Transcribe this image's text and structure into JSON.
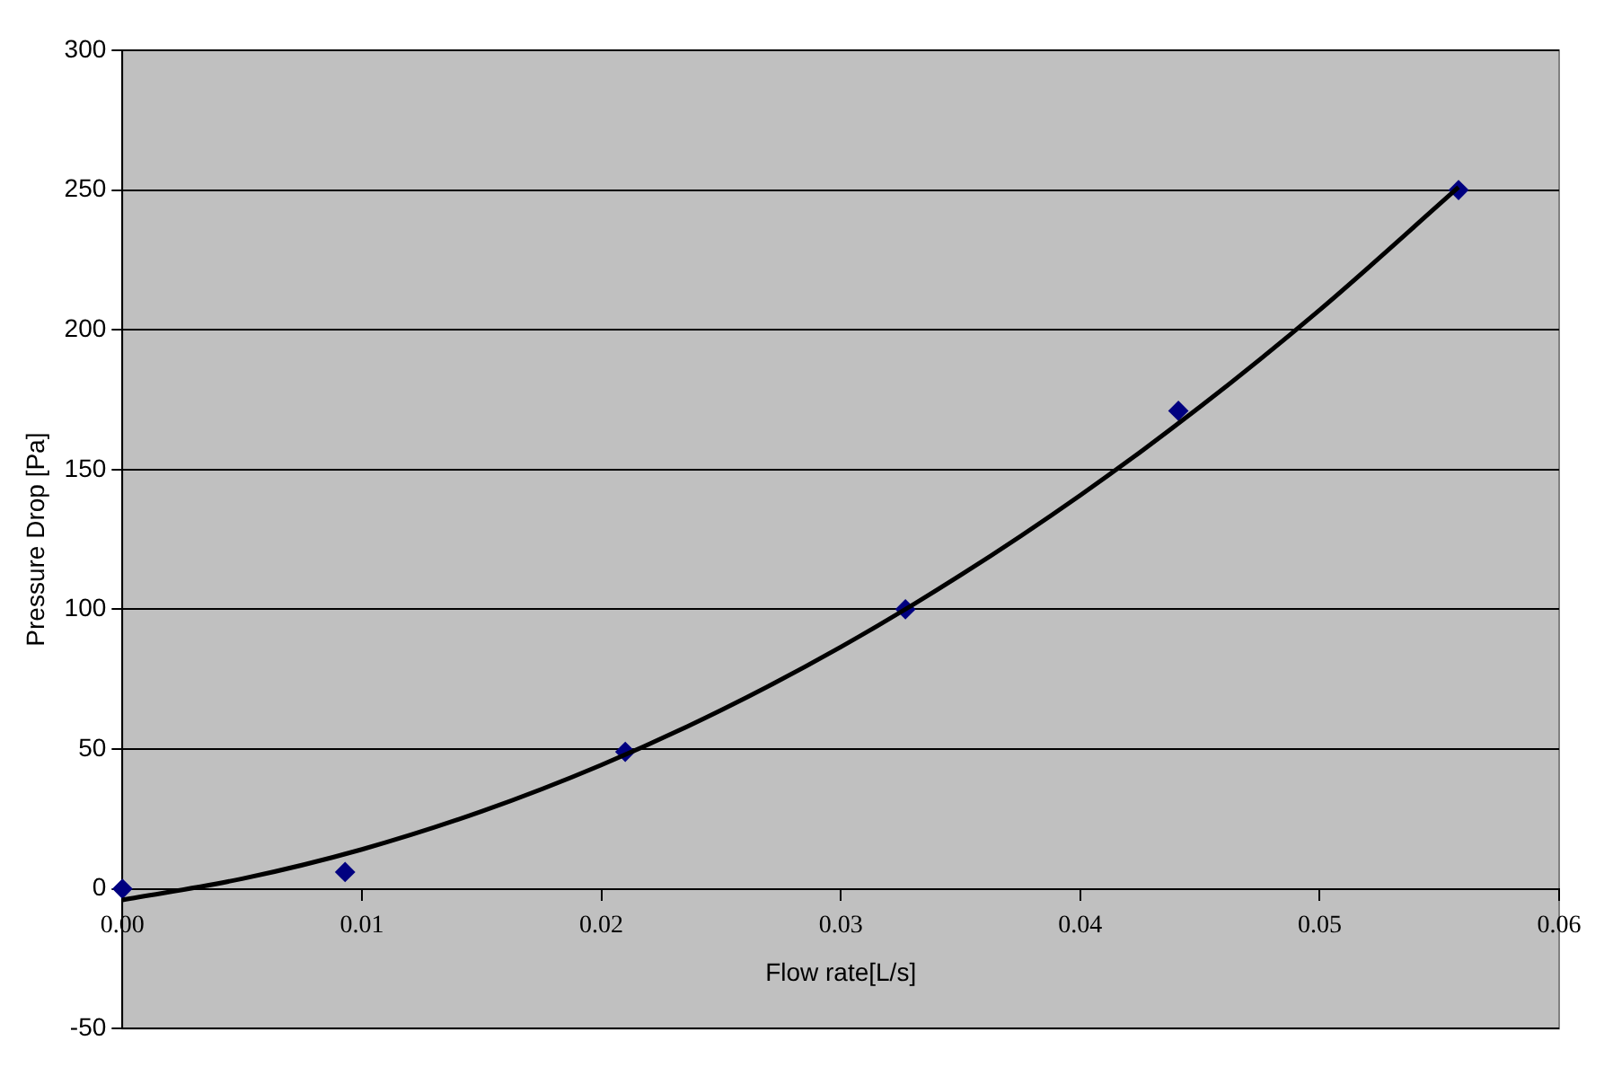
{
  "chart_data": {
    "type": "scatter",
    "xlabel": "Flow rate[L/s]",
    "ylabel": "Pressure Drop [Pa]",
    "xlim": [
      0,
      0.06
    ],
    "xticks": [
      {
        "value": 0,
        "label": "0.00"
      },
      {
        "value": 0.01,
        "label": "0.01"
      },
      {
        "value": 0.02,
        "label": "0.02"
      },
      {
        "value": 0.03,
        "label": "0.03"
      },
      {
        "value": 0.04,
        "label": "0.04"
      },
      {
        "value": 0.05,
        "label": "0.05"
      },
      {
        "value": 0.06,
        "label": "0.06"
      }
    ],
    "ylim": [
      -50,
      300
    ],
    "yticks": [
      -50,
      0,
      50,
      100,
      150,
      200,
      250,
      300
    ],
    "grid": "y",
    "legend": false,
    "series": [
      {
        "type": "scatter",
        "color": "#000080",
        "marker": "diamond",
        "x": [
          0,
          0.0093,
          0.021,
          0.0327,
          0.0441,
          0.0558
        ],
        "values": [
          0,
          6,
          49,
          100,
          171,
          250
        ]
      },
      {
        "type": "line",
        "color": "#000000",
        "marker": "none",
        "line_style": "solid",
        "x": [
          0,
          0.005,
          0.01,
          0.015,
          0.02,
          0.025,
          0.03,
          0.035,
          0.04,
          0.045,
          0.05,
          0.0558
        ],
        "values": [
          -4,
          3.6,
          14.1,
          27.7,
          44.3,
          63.9,
          86.5,
          112.2,
          140.8,
          172.4,
          207.1,
          251
        ]
      }
    ]
  }
}
